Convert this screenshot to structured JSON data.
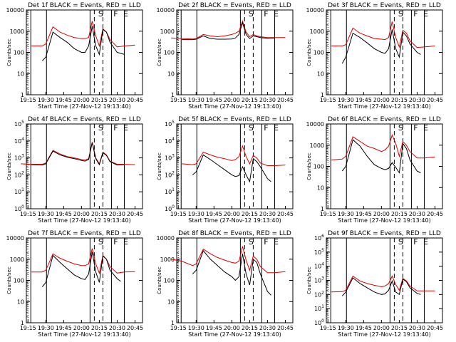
{
  "colors": {
    "events": "#000000",
    "lld": "#e00000",
    "axis": "#000000",
    "background": "#ffffff"
  },
  "x_tick_labels": [
    "19:15",
    "19:30",
    "19:45",
    "20:00",
    "20:15",
    "20:30",
    "20:45"
  ],
  "x_axis_label": "Start Time (27-Nov-12 19:13:40)",
  "y_axis_label": "Counts/sec",
  "chart_data": [
    {
      "type": "line",
      "title": "Det 1f  BLACK = Events, RED = LLD",
      "xlabel": "Start Time (27-Nov-12 19:13:40)",
      "ylabel": "Counts/sec",
      "yscale": "log",
      "ylim": [
        1,
        10000
      ],
      "y_tick_labels": [
        "1",
        "10",
        "100",
        "1000",
        "10000"
      ],
      "x_tick_labels": [
        "19:15",
        "19:30",
        "19:45",
        "20:00",
        "20:15",
        "20:30",
        "20:45"
      ],
      "markers": [
        "S",
        "F",
        "E"
      ],
      "series": [
        {
          "name": "Events",
          "color": "#000000",
          "x": [
            19.45,
            19.5,
            19.6,
            19.7,
            19.8,
            19.9,
            20.0,
            20.05,
            20.1,
            20.15,
            20.2,
            20.25,
            20.3,
            20.35,
            20.4,
            20.5,
            20.55,
            20.6
          ],
          "y": [
            40,
            60,
            900,
            500,
            300,
            150,
            100,
            100,
            200,
            1700,
            200,
            80,
            1200,
            900,
            300,
            100,
            90,
            80
          ]
        },
        {
          "name": "LLD",
          "color": "#e00000",
          "x": [
            19.3,
            19.45,
            19.5,
            19.6,
            19.7,
            19.8,
            19.9,
            20.0,
            20.05,
            20.1,
            20.15,
            20.2,
            20.25,
            20.3,
            20.35,
            20.4,
            20.5,
            20.6,
            20.75
          ],
          "y": [
            200,
            200,
            250,
            1600,
            900,
            650,
            500,
            450,
            450,
            500,
            3000,
            600,
            200,
            1300,
            900,
            400,
            180,
            200,
            220
          ]
        }
      ]
    },
    {
      "type": "line",
      "title": "Det 2f  BLACK = Events, RED = LLD",
      "xlabel": "Start Time (27-Nov-12 19:13:40)",
      "ylabel": "Counts/sec",
      "yscale": "log",
      "ylim": [
        1,
        10000
      ],
      "y_tick_labels": [
        "1",
        "10",
        "100",
        "1000",
        "10000"
      ],
      "x_tick_labels": [
        "19:15",
        "19:30",
        "19:45",
        "20:00",
        "20:15",
        "20:30",
        "20:45"
      ],
      "markers": [
        "S",
        "F",
        "E"
      ],
      "series": [
        {
          "name": "Events",
          "color": "#000000",
          "x": [
            19.3,
            19.45,
            19.5,
            19.6,
            19.7,
            19.8,
            19.9,
            20.0,
            20.05,
            20.1,
            20.15,
            20.2,
            20.25,
            20.3,
            20.35,
            20.4,
            20.5,
            20.6
          ],
          "y": [
            400,
            400,
            420,
            600,
            450,
            420,
            420,
            430,
            480,
            700,
            2500,
            700,
            450,
            600,
            550,
            500,
            460,
            480
          ]
        },
        {
          "name": "LLD",
          "color": "#e00000",
          "x": [
            19.15,
            19.3,
            19.45,
            19.5,
            19.6,
            19.7,
            19.8,
            19.9,
            20.0,
            20.05,
            20.1,
            20.15,
            20.2,
            20.25,
            20.3,
            20.35,
            20.4,
            20.5,
            20.6,
            20.75
          ],
          "y": [
            480,
            450,
            430,
            450,
            700,
            600,
            550,
            600,
            700,
            800,
            1000,
            3000,
            900,
            550,
            700,
            600,
            550,
            500,
            500,
            500
          ]
        }
      ]
    },
    {
      "type": "line",
      "title": "Det 3f  BLACK = Events, RED = LLD",
      "xlabel": "Start Time (27-Nov-12 19:13:40)",
      "ylabel": "Counts/sec",
      "yscale": "log",
      "ylim": [
        1,
        10000
      ],
      "y_tick_labels": [
        "1",
        "10",
        "100",
        "1000",
        "10000"
      ],
      "x_tick_labels": [
        "19:15",
        "19:30",
        "19:45",
        "20:00",
        "20:15",
        "20:30",
        "20:45"
      ],
      "markers": [
        "S",
        "F",
        "E"
      ],
      "series": [
        {
          "name": "Events",
          "color": "#000000",
          "x": [
            19.45,
            19.5,
            19.6,
            19.7,
            19.8,
            19.9,
            20.0,
            20.05,
            20.1,
            20.15,
            20.2,
            20.25,
            20.3,
            20.35,
            20.4,
            20.5,
            20.55
          ],
          "y": [
            30,
            60,
            800,
            500,
            280,
            150,
            100,
            90,
            150,
            1200,
            150,
            60,
            900,
            600,
            250,
            100,
            80
          ]
        },
        {
          "name": "LLD",
          "color": "#e00000",
          "x": [
            19.3,
            19.45,
            19.5,
            19.6,
            19.7,
            19.8,
            19.9,
            20.0,
            20.05,
            20.1,
            20.15,
            20.2,
            20.25,
            20.3,
            20.35,
            20.4,
            20.5,
            20.6,
            20.75
          ],
          "y": [
            200,
            200,
            230,
            1400,
            800,
            600,
            450,
            420,
            400,
            500,
            2800,
            500,
            180,
            1100,
            800,
            350,
            170,
            180,
            200
          ]
        }
      ]
    },
    {
      "type": "line",
      "title": "Det 4f  BLACK = Events, RED = LLD",
      "xlabel": "Start Time (27-Nov-12 19:13:40)",
      "ylabel": "Counts/sec",
      "yscale": "log",
      "ylim": [
        1,
        100000
      ],
      "y_tick_labels": [
        "10^0",
        "10^1",
        "10^2",
        "10^3",
        "10^4",
        "10^5"
      ],
      "x_tick_labels": [
        "19:15",
        "19:30",
        "19:45",
        "20:00",
        "20:15",
        "20:30",
        "20:45"
      ],
      "markers": [
        "S",
        "F",
        "E"
      ],
      "series": [
        {
          "name": "Events",
          "color": "#000000",
          "x": [
            19.3,
            19.45,
            19.5,
            19.6,
            19.7,
            19.8,
            19.9,
            20.0,
            20.05,
            20.1,
            20.15,
            20.2,
            20.25,
            20.3,
            20.35,
            20.4,
            20.5,
            20.6
          ],
          "y": [
            400,
            380,
            450,
            2500,
            1500,
            1100,
            900,
            700,
            650,
            800,
            8000,
            900,
            400,
            2000,
            1400,
            600,
            380,
            400
          ]
        },
        {
          "name": "LLD",
          "color": "#e00000",
          "x": [
            19.15,
            19.3,
            19.45,
            19.5,
            19.6,
            19.7,
            19.8,
            19.9,
            20.0,
            20.05,
            20.1,
            20.15,
            20.2,
            20.25,
            20.3,
            20.35,
            20.4,
            20.5,
            20.6,
            20.75
          ],
          "y": [
            450,
            420,
            420,
            500,
            2800,
            1700,
            1200,
            1000,
            800,
            750,
            900,
            8500,
            1000,
            450,
            2200,
            1500,
            650,
            420,
            420,
            400
          ]
        }
      ]
    },
    {
      "type": "line",
      "title": "Det 5f  BLACK = Events, RED = LLD",
      "xlabel": "Start Time (27-Nov-12 19:13:40)",
      "ylabel": "Counts/sec",
      "yscale": "log",
      "ylim": [
        1,
        100000
      ],
      "y_tick_labels": [
        "10^0",
        "10^1",
        "10^2",
        "10^3",
        "10^4",
        "10^5"
      ],
      "x_tick_labels": [
        "19:15",
        "19:30",
        "19:45",
        "20:00",
        "20:15",
        "20:30",
        "20:45"
      ],
      "markers": [
        "S",
        "F",
        "E"
      ],
      "series": [
        {
          "name": "Events",
          "color": "#000000",
          "x": [
            19.45,
            19.5,
            19.6,
            19.7,
            19.8,
            19.9,
            20.0,
            20.05,
            20.1,
            20.15,
            20.2,
            20.25,
            20.3,
            20.35,
            20.4,
            20.5,
            20.55
          ],
          "y": [
            100,
            150,
            1500,
            800,
            400,
            200,
            100,
            80,
            90,
            300,
            100,
            40,
            900,
            600,
            300,
            60,
            40
          ]
        },
        {
          "name": "LLD",
          "color": "#e00000",
          "x": [
            19.3,
            19.45,
            19.5,
            19.6,
            19.7,
            19.8,
            19.9,
            20.0,
            20.05,
            20.1,
            20.15,
            20.2,
            20.25,
            20.3,
            20.35,
            20.4,
            20.5,
            20.6,
            20.75
          ],
          "y": [
            450,
            400,
            450,
            2200,
            1500,
            1100,
            900,
            700,
            800,
            1200,
            5000,
            1200,
            450,
            1400,
            1000,
            500,
            350,
            350,
            380
          ]
        }
      ]
    },
    {
      "type": "line",
      "title": "Det 6f  BLACK = Events, RED = LLD",
      "xlabel": "Start Time (27-Nov-12 19:13:40)",
      "ylabel": "Counts/sec",
      "yscale": "log",
      "ylim": [
        1,
        10000
      ],
      "y_tick_labels": [
        "1",
        "10",
        "100",
        "1000",
        "10000"
      ],
      "x_tick_labels": [
        "19:15",
        "19:30",
        "19:45",
        "20:00",
        "20:15",
        "20:30",
        "20:45"
      ],
      "markers": [
        "S",
        "F",
        "E"
      ],
      "series": [
        {
          "name": "Events",
          "color": "#000000",
          "x": [
            19.45,
            19.5,
            19.6,
            19.7,
            19.8,
            19.9,
            20.0,
            20.05,
            20.1,
            20.15,
            20.2,
            20.25,
            20.3,
            20.35,
            20.4,
            20.5,
            20.55
          ],
          "y": [
            60,
            100,
            1800,
            900,
            300,
            120,
            80,
            70,
            80,
            150,
            90,
            50,
            1200,
            700,
            200,
            60,
            50
          ]
        },
        {
          "name": "LLD",
          "color": "#e00000",
          "x": [
            19.3,
            19.45,
            19.5,
            19.6,
            19.7,
            19.8,
            19.9,
            20.0,
            20.05,
            20.1,
            20.15,
            20.2,
            20.25,
            20.3,
            20.35,
            20.4,
            20.5,
            20.6,
            20.75
          ],
          "y": [
            200,
            220,
            300,
            2500,
            1500,
            900,
            700,
            500,
            600,
            900,
            3000,
            1200,
            300,
            1500,
            1000,
            500,
            250,
            250,
            280
          ]
        }
      ]
    },
    {
      "type": "line",
      "title": "Det 7f  BLACK = Events, RED = LLD",
      "xlabel": "Start Time (27-Nov-12 19:13:40)",
      "ylabel": "Counts/sec",
      "yscale": "log",
      "ylim": [
        1,
        10000
      ],
      "y_tick_labels": [
        "1",
        "10",
        "100",
        "1000",
        "10000"
      ],
      "x_tick_labels": [
        "19:15",
        "19:30",
        "19:45",
        "20:00",
        "20:15",
        "20:30",
        "20:45"
      ],
      "markers": [
        "S",
        "F",
        "E"
      ],
      "series": [
        {
          "name": "Events",
          "color": "#000000",
          "x": [
            19.45,
            19.5,
            19.6,
            19.7,
            19.8,
            19.9,
            20.0,
            20.05,
            20.1,
            20.15,
            20.2,
            20.25,
            20.3,
            20.35,
            20.4,
            20.5,
            20.55
          ],
          "y": [
            50,
            80,
            1500,
            700,
            350,
            180,
            120,
            110,
            200,
            2200,
            250,
            80,
            1400,
            1000,
            300,
            120,
            90
          ]
        },
        {
          "name": "LLD",
          "color": "#e00000",
          "x": [
            19.3,
            19.45,
            19.5,
            19.6,
            19.7,
            19.8,
            19.9,
            20.0,
            20.05,
            20.1,
            20.15,
            20.2,
            20.25,
            20.3,
            20.35,
            20.4,
            20.5,
            20.6,
            20.75
          ],
          "y": [
            250,
            250,
            300,
            1800,
            1100,
            800,
            600,
            500,
            500,
            600,
            3200,
            600,
            220,
            1500,
            1000,
            450,
            220,
            250,
            260
          ]
        }
      ]
    },
    {
      "type": "line",
      "title": "Det 8f  BLACK = Events, RED = LLD",
      "xlabel": "Start Time (27-Nov-12 19:13:40)",
      "ylabel": "Counts/sec",
      "yscale": "log",
      "ylim": [
        1,
        10000
      ],
      "y_tick_labels": [
        "1",
        "10",
        "100",
        "1000",
        "10000"
      ],
      "x_tick_labels": [
        "19:15",
        "19:30",
        "19:45",
        "20:00",
        "20:15",
        "20:30",
        "20:45"
      ],
      "markers": [
        "S",
        "F",
        "E"
      ],
      "series": [
        {
          "name": "Events",
          "color": "#000000",
          "x": [
            19.45,
            19.5,
            19.6,
            19.7,
            19.8,
            19.9,
            20.0,
            20.05,
            20.1,
            20.15,
            20.2,
            20.25,
            20.3,
            20.35,
            20.4,
            20.5,
            20.55
          ],
          "y": [
            200,
            300,
            2500,
            1000,
            500,
            250,
            150,
            100,
            150,
            1800,
            200,
            60,
            1000,
            700,
            200,
            30,
            20
          ]
        },
        {
          "name": "LLD",
          "color": "#e00000",
          "x": [
            19.15,
            19.3,
            19.45,
            19.5,
            19.6,
            19.7,
            19.8,
            19.9,
            20.0,
            20.05,
            20.1,
            20.15,
            20.2,
            20.25,
            20.3,
            20.35,
            20.4,
            20.5,
            20.6,
            20.75
          ],
          "y": [
            1000,
            800,
            500,
            600,
            3000,
            1800,
            1200,
            900,
            700,
            650,
            800,
            4000,
            900,
            300,
            1400,
            1000,
            450,
            230,
            230,
            260
          ]
        }
      ]
    },
    {
      "type": "line",
      "title": "Det 9f  BLACK = Events, RED = LLD",
      "xlabel": "Start Time (27-Nov-12 19:13:40)",
      "ylabel": "Counts/sec",
      "yscale": "log",
      "ylim": [
        1,
        1000000
      ],
      "y_tick_labels": [
        "10^0",
        "10^1",
        "10^2",
        "10^3",
        "10^4",
        "10^5",
        "10^6"
      ],
      "x_tick_labels": [
        "19:15",
        "19:30",
        "19:45",
        "20:00",
        "20:15",
        "20:30",
        "20:45"
      ],
      "markers": [
        "S",
        "F",
        "E"
      ],
      "series": [
        {
          "name": "Events",
          "color": "#000000",
          "x": [
            19.45,
            19.5,
            19.6,
            19.7,
            19.8,
            19.9,
            20.0,
            20.05,
            20.1,
            20.15,
            20.2,
            20.25,
            20.3,
            20.35,
            20.4,
            20.5,
            20.55
          ],
          "y": [
            80,
            150,
            1500,
            600,
            300,
            150,
            100,
            110,
            200,
            900,
            150,
            100,
            1200,
            800,
            300,
            120,
            100
          ]
        },
        {
          "name": "LLD",
          "color": "#e00000",
          "x": [
            19.3,
            19.45,
            19.5,
            19.6,
            19.7,
            19.8,
            19.9,
            20.0,
            20.05,
            20.1,
            20.15,
            20.2,
            20.25,
            20.3,
            20.35,
            20.4,
            20.5,
            20.6,
            20.75
          ],
          "y": [
            150,
            160,
            200,
            2000,
            900,
            600,
            450,
            350,
            400,
            600,
            2000,
            500,
            200,
            1400,
            900,
            400,
            180,
            180,
            180
          ]
        }
      ]
    }
  ]
}
